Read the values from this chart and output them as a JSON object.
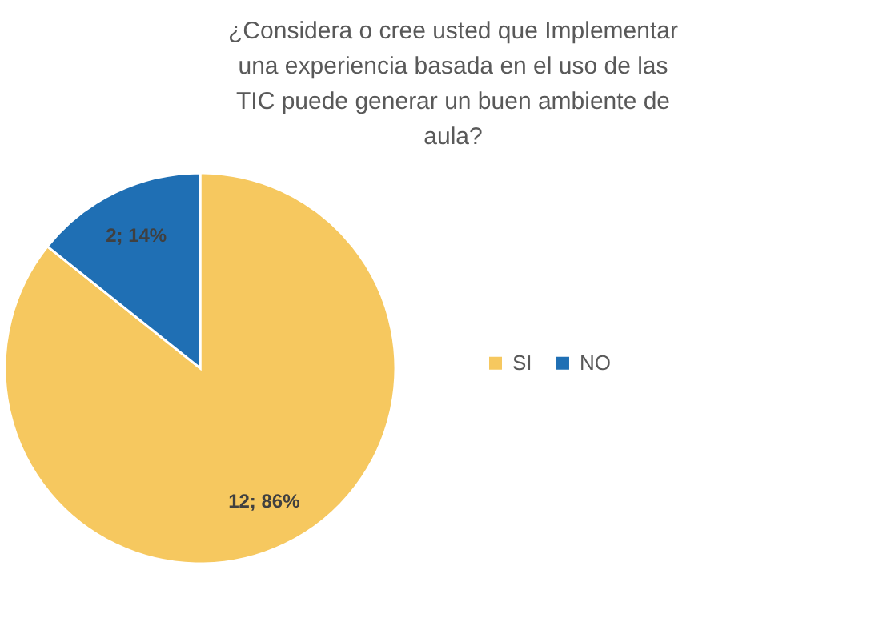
{
  "chart_data": {
    "type": "pie",
    "title": "¿Considera o cree usted que Implementar una experiencia basada en el uso de las TIC puede generar un buen ambiente de aula?",
    "categories": [
      "SI",
      "NO"
    ],
    "values": [
      12,
      2
    ],
    "value_labels": [
      "12; 86%",
      "2; 14%"
    ],
    "colors": [
      "#f6c85f",
      "#1f6fb4"
    ],
    "legend": "right"
  }
}
